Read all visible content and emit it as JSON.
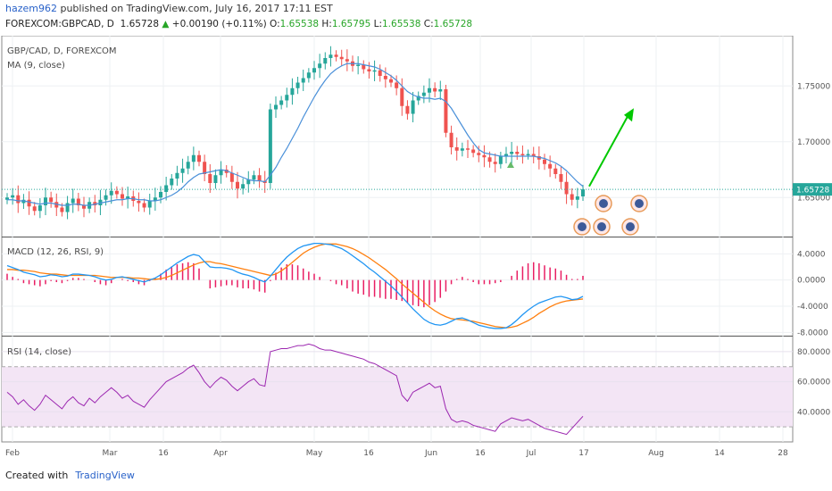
{
  "header": {
    "user": "hazem962",
    "published": " published on TradingView.com, July 16, 2017 17:11 EST",
    "symbol": "FOREXCOM:GBPCAD, D",
    "last": "1.65728",
    "change": "+0.00190 (+0.11%)",
    "open_label": "O:",
    "open": "1.65538",
    "high_label": "H:",
    "high": "1.65795",
    "low_label": "L:",
    "low": "1.65538",
    "close_label": "C:",
    "close": "1.65728"
  },
  "footer": {
    "created_with": "Created with",
    "brand": "TradingView"
  },
  "colors": {
    "up": "#26a69a",
    "down": "#ef5350",
    "ma": "#4a90d9",
    "macd": "#2196f3",
    "signal": "#ff7f0e",
    "hist": "#e91e63",
    "rsi": "#9c27b0",
    "rsi_band": "#f3e5f5",
    "arrow": "#00c800",
    "price_line": "#26a69a"
  },
  "chart_data": [
    {
      "type": "candlestick",
      "title": "GBP/CAD, D, FOREXCOM",
      "indicator": "MA (9, close)",
      "ylim": [
        1.615,
        1.795
      ],
      "y_ticks": [
        "1.75000",
        "1.70000",
        "1.65000"
      ],
      "last_price": "1.65728",
      "x_ticks": [
        "Feb",
        "Mar",
        "16",
        "Apr",
        "May",
        "16",
        "Jun",
        "16",
        "Jul",
        "17",
        "Aug",
        "14",
        "28"
      ],
      "close_series": [
        1.65,
        1.652,
        1.645,
        1.648,
        1.642,
        1.638,
        1.643,
        1.65,
        1.646,
        1.641,
        1.637,
        1.645,
        1.649,
        1.643,
        1.64,
        1.646,
        1.643,
        1.648,
        1.652,
        1.656,
        1.653,
        1.649,
        1.651,
        1.647,
        1.645,
        1.641,
        1.647,
        1.65,
        1.655,
        1.661,
        1.667,
        1.672,
        1.676,
        1.682,
        1.688,
        1.682,
        1.671,
        1.663,
        1.67,
        1.675,
        1.672,
        1.664,
        1.658,
        1.662,
        1.666,
        1.67,
        1.665,
        1.663,
        1.729,
        1.733,
        1.737,
        1.742,
        1.748,
        1.753,
        1.757,
        1.762,
        1.766,
        1.77,
        1.775,
        1.778,
        1.776,
        1.774,
        1.772,
        1.768,
        1.769,
        1.765,
        1.763,
        1.764,
        1.759,
        1.756,
        1.753,
        1.748,
        1.732,
        1.725,
        1.737,
        1.741,
        1.744,
        1.748,
        1.745,
        1.747,
        1.708,
        1.695,
        1.692,
        1.694,
        1.693,
        1.69,
        1.688,
        1.686,
        1.682,
        1.68,
        1.687,
        1.689,
        1.691,
        1.689,
        1.688,
        1.689,
        1.687,
        1.684,
        1.68,
        1.676,
        1.671,
        1.664,
        1.653,
        1.648,
        1.651,
        1.6573
      ],
      "ma_series": [
        1.648,
        1.648,
        1.647,
        1.647,
        1.646,
        1.645,
        1.644,
        1.645,
        1.645,
        1.644,
        1.643,
        1.643,
        1.644,
        1.644,
        1.643,
        1.643,
        1.644,
        1.645,
        1.646,
        1.647,
        1.648,
        1.648,
        1.649,
        1.649,
        1.648,
        1.648,
        1.647,
        1.647,
        1.648,
        1.65,
        1.652,
        1.655,
        1.659,
        1.664,
        1.668,
        1.671,
        1.672,
        1.673,
        1.674,
        1.675,
        1.674,
        1.672,
        1.67,
        1.668,
        1.666,
        1.665,
        1.665,
        1.664,
        1.67,
        1.677,
        1.686,
        1.694,
        1.703,
        1.712,
        1.722,
        1.731,
        1.74,
        1.748,
        1.755,
        1.761,
        1.765,
        1.768,
        1.77,
        1.77,
        1.77,
        1.769,
        1.768,
        1.767,
        1.765,
        1.762,
        1.759,
        1.755,
        1.75,
        1.745,
        1.742,
        1.74,
        1.739,
        1.739,
        1.738,
        1.739,
        1.736,
        1.73,
        1.722,
        1.714,
        1.706,
        1.699,
        1.693,
        1.69,
        1.689,
        1.688,
        1.687,
        1.687,
        1.687,
        1.687,
        1.687,
        1.687,
        1.687,
        1.686,
        1.685,
        1.683,
        1.681,
        1.678,
        1.674,
        1.669,
        1.664,
        1.66
      ],
      "annotation": "arrow up from 1.660 to 1.727 (mid-July to late July)"
    },
    {
      "type": "line",
      "title": "MACD (12, 26, RSI, 9)",
      "ylim": [
        -8.5,
        6.5
      ],
      "y_ticks": [
        "4.0000",
        "0.0000",
        "-4.0000",
        "-8.0000"
      ],
      "macd": [
        2.2,
        1.9,
        1.6,
        1.2,
        1.0,
        0.8,
        0.5,
        0.6,
        0.8,
        0.7,
        0.5,
        0.6,
        0.9,
        0.9,
        0.8,
        0.7,
        0.5,
        0.2,
        0.0,
        0.1,
        0.4,
        0.5,
        0.3,
        0.1,
        -0.1,
        -0.3,
        0.0,
        0.3,
        0.8,
        1.4,
        2.0,
        2.6,
        3.1,
        3.6,
        3.9,
        3.7,
        2.8,
        2.0,
        1.9,
        1.9,
        1.8,
        1.6,
        1.2,
        0.9,
        0.7,
        0.4,
        0.0,
        -0.3,
        0.6,
        1.6,
        2.6,
        3.5,
        4.2,
        4.8,
        5.2,
        5.4,
        5.6,
        5.6,
        5.5,
        5.4,
        5.1,
        4.8,
        4.3,
        3.7,
        3.1,
        2.5,
        1.8,
        1.2,
        0.5,
        -0.2,
        -0.9,
        -1.7,
        -2.6,
        -3.5,
        -4.4,
        -5.2,
        -6.0,
        -6.5,
        -6.8,
        -6.9,
        -6.7,
        -6.3,
        -5.9,
        -5.8,
        -6.1,
        -6.5,
        -6.9,
        -7.1,
        -7.3,
        -7.4,
        -7.4,
        -7.3,
        -6.8,
        -6.1,
        -5.3,
        -4.6,
        -4.0,
        -3.5,
        -3.2,
        -2.9,
        -2.6,
        -2.5,
        -2.7,
        -3.0,
        -2.9,
        -2.5
      ],
      "signal": [
        1.6,
        1.6,
        1.5,
        1.5,
        1.4,
        1.3,
        1.1,
        1.0,
        0.9,
        0.9,
        0.8,
        0.7,
        0.7,
        0.7,
        0.7,
        0.7,
        0.7,
        0.6,
        0.5,
        0.4,
        0.4,
        0.4,
        0.4,
        0.3,
        0.3,
        0.2,
        0.1,
        0.1,
        0.2,
        0.4,
        0.7,
        1.1,
        1.5,
        1.9,
        2.3,
        2.6,
        2.8,
        2.8,
        2.6,
        2.5,
        2.3,
        2.1,
        1.9,
        1.7,
        1.5,
        1.3,
        1.1,
        0.9,
        0.7,
        0.9,
        1.4,
        2.0,
        2.7,
        3.4,
        4.1,
        4.6,
        5.0,
        5.3,
        5.5,
        5.5,
        5.5,
        5.3,
        5.1,
        4.8,
        4.4,
        3.9,
        3.4,
        2.8,
        2.2,
        1.6,
        0.9,
        0.2,
        -0.6,
        -1.3,
        -2.0,
        -2.7,
        -3.4,
        -4.1,
        -4.7,
        -5.2,
        -5.6,
        -5.9,
        -6.0,
        -6.1,
        -6.2,
        -6.3,
        -6.5,
        -6.7,
        -6.9,
        -7.1,
        -7.2,
        -7.3,
        -7.2,
        -7.0,
        -6.6,
        -6.2,
        -5.7,
        -5.1,
        -4.6,
        -4.1,
        -3.7,
        -3.4,
        -3.2,
        -3.1,
        -3.0,
        -2.9
      ]
    },
    {
      "type": "line",
      "title": "RSI (14, close)",
      "ylim": [
        20,
        90
      ],
      "y_ticks": [
        "80.0000",
        "60.0000",
        "40.0000"
      ],
      "band": [
        30,
        70
      ],
      "rsi": [
        53,
        50,
        45,
        48,
        44,
        41,
        45,
        51,
        48,
        45,
        42,
        47,
        50,
        46,
        44,
        49,
        46,
        50,
        53,
        56,
        53,
        49,
        51,
        47,
        45,
        43,
        48,
        52,
        56,
        60,
        62,
        64,
        66,
        69,
        71,
        66,
        60,
        56,
        60,
        63,
        61,
        57,
        54,
        57,
        60,
        62,
        58,
        57,
        80,
        81,
        82,
        82,
        83,
        84,
        84,
        85,
        84,
        82,
        81,
        81,
        80,
        79,
        78,
        77,
        76,
        75,
        73,
        72,
        70,
        68,
        66,
        64,
        51,
        47,
        53,
        55,
        57,
        59,
        56,
        57,
        42,
        35,
        33,
        34,
        33,
        31,
        30,
        29,
        28,
        27,
        32,
        34,
        36,
        35,
        34,
        35,
        33,
        31,
        29,
        28,
        27,
        26,
        25,
        29,
        33,
        37
      ]
    }
  ]
}
